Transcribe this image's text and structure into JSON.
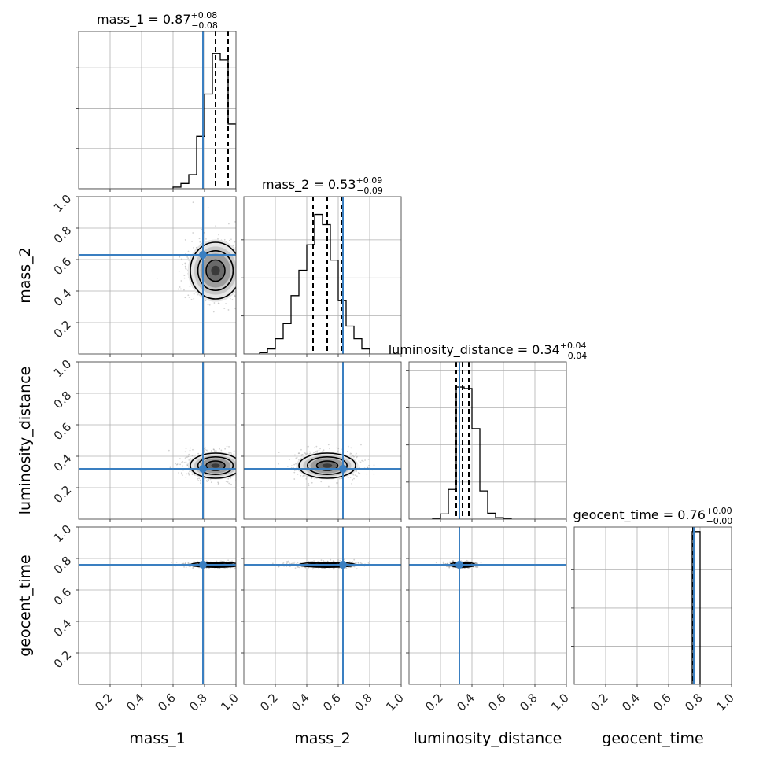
{
  "chart_data": {
    "type": "corner",
    "parameters": [
      "mass_1",
      "mass_2",
      "luminosity_distance",
      "geocent_time"
    ],
    "axis_labels": [
      "mass_1",
      "mass_2",
      "luminosity_distance",
      "geocent_time"
    ],
    "axis_range": [
      0,
      1
    ],
    "grid": true,
    "ticks": [
      0.2,
      0.4,
      0.6,
      0.8,
      1.0
    ],
    "tick_labels": [
      "0.2",
      "0.4",
      "0.6",
      "0.8",
      "1.0"
    ],
    "titles": [
      {
        "label": "mass_1 = 0.87",
        "upper": "+0.08",
        "lower": "−0.08"
      },
      {
        "label": "mass_2 = 0.53",
        "upper": "+0.09",
        "lower": "−0.09"
      },
      {
        "label": "luminosity_distance = 0.34",
        "upper": "+0.04",
        "lower": "−0.04"
      },
      {
        "label": "geocent_time = 0.76",
        "upper": "+0.00",
        "lower": "−0.00"
      }
    ],
    "medians": [
      0.87,
      0.53,
      0.34,
      0.76
    ],
    "quantiles_16_84": [
      [
        0.79,
        0.95
      ],
      [
        0.44,
        0.62
      ],
      [
        0.3,
        0.38
      ],
      [
        0.755,
        0.765
      ]
    ],
    "truths": [
      0.79,
      0.63,
      0.32,
      0.76
    ],
    "truth_color": "#3a7fc1",
    "histograms": [
      {
        "bin_edges": [
          0.6,
          0.65,
          0.7,
          0.75,
          0.8,
          0.85,
          0.9,
          0.95,
          1.0
        ],
        "density": [
          0.04,
          0.13,
          0.35,
          1.3,
          2.35,
          3.35,
          3.2,
          1.6
        ]
      },
      {
        "bin_edges": [
          0.1,
          0.15,
          0.2,
          0.25,
          0.3,
          0.35,
          0.4,
          0.45,
          0.5,
          0.55,
          0.6,
          0.65,
          0.7,
          0.75,
          0.8
        ],
        "density": [
          0.05,
          0.2,
          0.6,
          1.2,
          2.3,
          3.3,
          4.3,
          5.5,
          5.1,
          3.7,
          2.1,
          1.1,
          0.6,
          0.2
        ]
      },
      {
        "bin_edges": [
          0.15,
          0.2,
          0.25,
          0.3,
          0.35,
          0.4,
          0.45,
          0.5,
          0.55,
          0.6,
          0.65
        ],
        "density": [
          0.05,
          0.35,
          2.0,
          8.9,
          8.8,
          6.1,
          1.9,
          0.4,
          0.1,
          0.02
        ]
      },
      {
        "bin_edges": [
          0.7,
          0.75,
          0.8,
          0.85
        ],
        "density": [
          0.0,
          20.0,
          0.0
        ]
      }
    ],
    "histogram_ymax": [
      3.9,
      6.2,
      10.6,
      20.6
    ],
    "joint_contours": [
      {
        "x": "mass_1",
        "y": "mass_2",
        "center": [
          0.87,
          0.53
        ],
        "sigma": [
          0.08,
          0.09
        ]
      },
      {
        "x": "mass_1",
        "y": "luminosity_distance",
        "center": [
          0.87,
          0.34
        ],
        "sigma": [
          0.08,
          0.04
        ]
      },
      {
        "x": "mass_2",
        "y": "luminosity_distance",
        "center": [
          0.53,
          0.34
        ],
        "sigma": [
          0.09,
          0.04
        ]
      },
      {
        "x": "mass_1",
        "y": "geocent_time",
        "center": [
          0.87,
          0.76
        ],
        "sigma": [
          0.08,
          0.008
        ]
      },
      {
        "x": "mass_2",
        "y": "geocent_time",
        "center": [
          0.53,
          0.76
        ],
        "sigma": [
          0.09,
          0.008
        ]
      },
      {
        "x": "luminosity_distance",
        "y": "geocent_time",
        "center": [
          0.34,
          0.76
        ],
        "sigma": [
          0.04,
          0.008
        ]
      }
    ]
  }
}
